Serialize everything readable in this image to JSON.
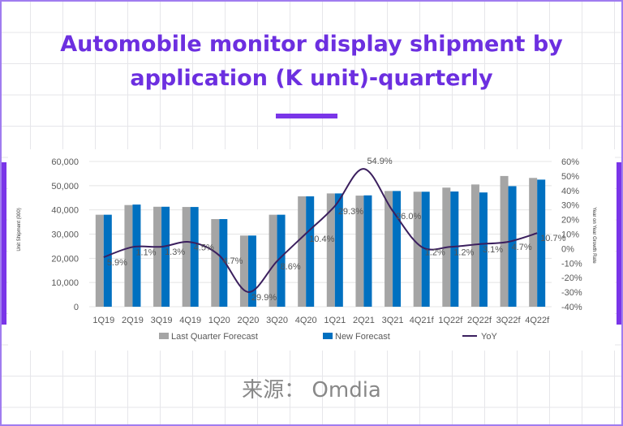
{
  "title_line1": "Automobile monitor display shipment by",
  "title_line2": "application (K unit)-quarterly",
  "source": "来源： Omdia",
  "colors": {
    "title": "#6c2fe0",
    "accent": "#7a35e8",
    "last_quarter": "#a5a5a5",
    "new_forecast": "#0070c0",
    "yoy": "#3b1f5e"
  },
  "chart_data": {
    "type": "bar",
    "title": "",
    "categories": [
      "1Q19",
      "2Q19",
      "3Q19",
      "4Q19",
      "1Q20",
      "2Q20",
      "3Q20",
      "4Q20",
      "1Q21",
      "2Q21",
      "3Q21",
      "4Q21f",
      "1Q22f",
      "2Q22f",
      "3Q22f",
      "4Q22f"
    ],
    "series": [
      {
        "name": "Last Quarter Forecast",
        "kind": "bar",
        "axis": "left",
        "values": [
          38000,
          42000,
          41300,
          41200,
          36200,
          29400,
          38000,
          45600,
          46800,
          45900,
          47800,
          47500,
          49200,
          50500,
          54000,
          53200
        ]
      },
      {
        "name": "New Forecast",
        "kind": "bar",
        "axis": "left",
        "values": [
          38000,
          42200,
          41300,
          41200,
          36200,
          29400,
          38000,
          45600,
          46800,
          46000,
          47800,
          47500,
          47600,
          47200,
          49800,
          52500
        ]
      },
      {
        "name": "YoY",
        "kind": "line",
        "axis": "right",
        "values": [
          -5.9,
          1.1,
          1.3,
          4.5,
          -4.7,
          -29.9,
          -8.6,
          10.4,
          29.3,
          54.9,
          26.0,
          1.2,
          1.2,
          3.1,
          4.7,
          10.7
        ],
        "labels": [
          "5.9%",
          "1.1%",
          "1.3%",
          "4.5%",
          "4.7%",
          "29.9%",
          "8.6%",
          "10.4%",
          "29.3%",
          "54.9%",
          "26.0%",
          "1.2%",
          "1.2%",
          "3.1%",
          "4.7%",
          "10.7%"
        ]
      }
    ],
    "ylabel": "Unit Shipment (000)",
    "y2label": "Year on Year Growth Rate",
    "ylim": [
      0,
      60000
    ],
    "y2lim": [
      -40,
      60
    ],
    "yticks": [
      "0",
      "10,000",
      "20,000",
      "30,000",
      "40,000",
      "50,000",
      "60,000"
    ],
    "y2ticks": [
      "-40%",
      "-30%",
      "-20%",
      "-10%",
      "0%",
      "10%",
      "20%",
      "30%",
      "40%",
      "50%",
      "60%"
    ],
    "grid": true,
    "legend": "bottom"
  }
}
